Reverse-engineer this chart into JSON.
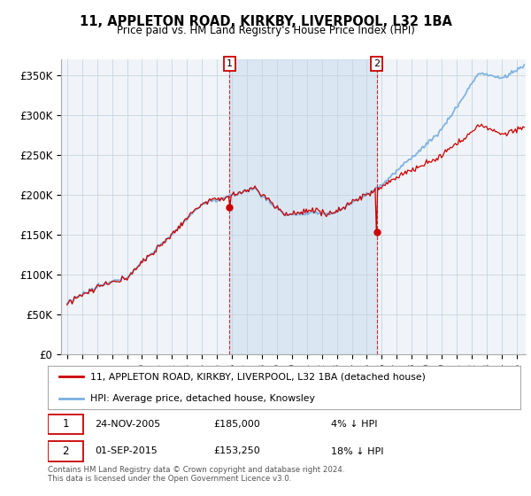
{
  "title": "11, APPLETON ROAD, KIRKBY, LIVERPOOL, L32 1BA",
  "subtitle": "Price paid vs. HM Land Registry's House Price Index (HPI)",
  "hpi_label": "HPI: Average price, detached house, Knowsley",
  "property_label": "11, APPLETON ROAD, KIRKBY, LIVERPOOL, L32 1BA (detached house)",
  "footer1": "Contains HM Land Registry data © Crown copyright and database right 2024.",
  "footer2": "This data is licensed under the Open Government Licence v3.0.",
  "sale1_date": "24-NOV-2005",
  "sale1_price": 185000,
  "sale1_note": "4% ↓ HPI",
  "sale2_date": "01-SEP-2015",
  "sale2_price": 153250,
  "sale2_note": "18% ↓ HPI",
  "hpi_color": "#7ab0e0",
  "property_color": "#cc0000",
  "ylim": [
    0,
    370000
  ],
  "yticks": [
    0,
    50000,
    100000,
    150000,
    200000,
    250000,
    300000,
    350000
  ],
  "ytick_labels": [
    "£0",
    "£50K",
    "£100K",
    "£150K",
    "£200K",
    "£250K",
    "£300K",
    "£350K"
  ],
  "background_color": "#f0f4f8",
  "grid_color": "#c8d4e0"
}
